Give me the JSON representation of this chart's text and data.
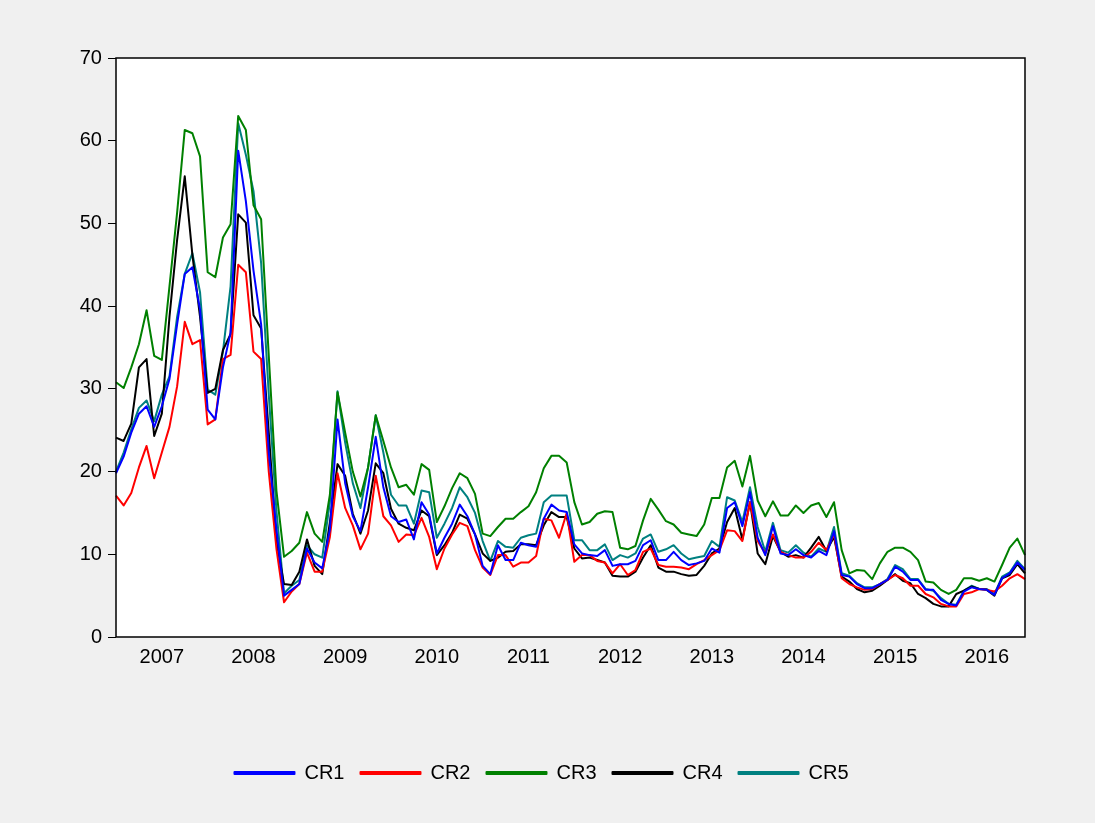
{
  "chart_data": {
    "type": "line",
    "categories": [
      null,
      null,
      null,
      null,
      null,
      null,
      "2007",
      null,
      null,
      null,
      null,
      null,
      null,
      null,
      null,
      null,
      null,
      null,
      "2008",
      null,
      null,
      null,
      null,
      null,
      null,
      null,
      null,
      null,
      null,
      null,
      "2009",
      null,
      null,
      null,
      null,
      null,
      null,
      null,
      null,
      null,
      null,
      null,
      "2010",
      null,
      null,
      null,
      null,
      null,
      null,
      null,
      null,
      null,
      null,
      null,
      "2011",
      null,
      null,
      null,
      null,
      null,
      null,
      null,
      null,
      null,
      null,
      null,
      "2012",
      null,
      null,
      null,
      null,
      null,
      null,
      null,
      null,
      null,
      null,
      null,
      "2013",
      null,
      null,
      null,
      null,
      null,
      null,
      null,
      null,
      null,
      null,
      null,
      "2014",
      null,
      null,
      null,
      null,
      null,
      null,
      null,
      null,
      null,
      null,
      null,
      "2015",
      null,
      null,
      null,
      null,
      null,
      null,
      null,
      null,
      null,
      null,
      null,
      "2016",
      null,
      null,
      null,
      null,
      null
    ],
    "series": [
      {
        "name": "CR1",
        "color": "#0000ff",
        "values": [
          19.8,
          21.8,
          24.7,
          27.0,
          27.9,
          25.4,
          27.9,
          31.2,
          37.8,
          43.9,
          44.7,
          39.6,
          27.5,
          26.3,
          32.6,
          36.8,
          58.8,
          52.7,
          44.3,
          37.8,
          22.3,
          13.0,
          5.0,
          5.7,
          6.4,
          10.7,
          9.0,
          8.3,
          13.0,
          26.3,
          18.6,
          14.6,
          12.8,
          18.1,
          24.2,
          18.1,
          14.6,
          13.9,
          14.2,
          11.8,
          16.3,
          14.8,
          10.1,
          12.0,
          13.7,
          16.0,
          14.6,
          12.4,
          8.6,
          7.6,
          11.1,
          9.3,
          9.3,
          11.4,
          11.1,
          10.9,
          14.3,
          16.0,
          15.3,
          15.1,
          11.2,
          10.1,
          9.9,
          9.8,
          10.5,
          8.6,
          8.8,
          8.8,
          9.2,
          11.1,
          11.7,
          9.3,
          9.3,
          10.3,
          9.3,
          8.7,
          8.9,
          9.2,
          10.7,
          10.2,
          15.6,
          16.3,
          13.4,
          17.5,
          12.0,
          9.9,
          13.4,
          10.1,
          9.9,
          10.6,
          9.9,
          9.6,
          10.4,
          9.9,
          12.8,
          7.5,
          7.3,
          6.4,
          5.9,
          5.9,
          6.4,
          6.9,
          8.5,
          7.9,
          6.9,
          6.9,
          5.7,
          5.7,
          4.5,
          4.0,
          3.8,
          5.5,
          6.0,
          5.8,
          5.7,
          5.1,
          7.1,
          7.7,
          9.0,
          8.1
        ]
      },
      {
        "name": "CR2",
        "color": "#ff0000",
        "values": [
          17.1,
          15.9,
          17.4,
          20.5,
          23.1,
          19.2,
          22.3,
          25.4,
          30.3,
          38.1,
          35.4,
          35.9,
          25.7,
          26.3,
          33.6,
          34.1,
          45.0,
          44.1,
          34.5,
          33.6,
          20.0,
          10.7,
          4.2,
          5.5,
          6.4,
          10.2,
          7.9,
          7.9,
          12.1,
          19.8,
          15.6,
          13.5,
          10.6,
          12.5,
          19.5,
          14.6,
          13.5,
          11.5,
          12.4,
          12.3,
          14.4,
          12.1,
          8.2,
          10.7,
          12.4,
          13.8,
          13.4,
          10.5,
          8.4,
          7.5,
          9.9,
          9.9,
          8.5,
          9.0,
          9.0,
          9.8,
          14.3,
          14.1,
          12.0,
          15.0,
          9.1,
          9.9,
          9.9,
          9.2,
          9.0,
          7.7,
          8.8,
          7.5,
          8.1,
          10.3,
          10.7,
          8.7,
          8.5,
          8.5,
          8.4,
          8.2,
          8.8,
          9.3,
          9.9,
          10.5,
          12.9,
          12.8,
          11.6,
          16.3,
          11.6,
          10.1,
          12.4,
          10.3,
          9.9,
          9.6,
          9.6,
          10.3,
          11.4,
          10.5,
          12.4,
          7.1,
          6.4,
          6.0,
          5.7,
          5.8,
          6.4,
          6.9,
          7.5,
          7.1,
          6.2,
          6.2,
          5.2,
          4.8,
          4.0,
          3.7,
          3.7,
          5.2,
          5.4,
          5.8,
          5.7,
          5.5,
          6.2,
          7.1,
          7.6,
          7.0
        ]
      },
      {
        "name": "CR3",
        "color": "#008000",
        "values": [
          30.8,
          30.1,
          32.6,
          35.4,
          39.5,
          34.0,
          33.5,
          42.4,
          51.3,
          61.3,
          60.9,
          58.1,
          44.1,
          43.5,
          48.3,
          49.9,
          63.0,
          61.3,
          52.2,
          50.5,
          34.0,
          17.7,
          9.7,
          10.4,
          11.4,
          15.1,
          12.5,
          11.5,
          17.2,
          29.6,
          24.7,
          20.0,
          17.0,
          20.5,
          26.8,
          23.7,
          20.5,
          18.1,
          18.4,
          17.2,
          20.9,
          20.2,
          13.9,
          15.8,
          18.0,
          19.8,
          19.2,
          17.3,
          12.5,
          12.2,
          13.3,
          14.3,
          14.3,
          15.1,
          15.8,
          17.5,
          20.4,
          21.9,
          21.9,
          21.1,
          16.3,
          13.6,
          13.9,
          14.9,
          15.2,
          15.1,
          10.8,
          10.6,
          11.0,
          14.1,
          16.7,
          15.4,
          14.0,
          13.6,
          12.6,
          12.4,
          12.2,
          13.6,
          16.8,
          16.8,
          20.5,
          21.3,
          18.2,
          21.9,
          16.5,
          14.6,
          16.4,
          14.7,
          14.7,
          15.9,
          15.0,
          15.9,
          16.2,
          14.5,
          16.3,
          10.5,
          7.7,
          8.1,
          8.0,
          7.0,
          8.9,
          10.3,
          10.8,
          10.8,
          10.3,
          9.3,
          6.7,
          6.6,
          5.7,
          5.2,
          5.7,
          7.1,
          7.1,
          6.8,
          7.1,
          6.7,
          8.7,
          10.8,
          11.9,
          9.9
        ]
      },
      {
        "name": "CR4",
        "color": "#000000",
        "values": [
          24.1,
          23.7,
          25.8,
          32.6,
          33.6,
          24.3,
          27.0,
          38.7,
          48.0,
          55.7,
          46.2,
          38.7,
          29.5,
          30.0,
          34.7,
          36.6,
          51.1,
          50.1,
          38.9,
          37.3,
          24.7,
          11.6,
          6.4,
          6.3,
          7.9,
          11.8,
          8.6,
          7.6,
          13.9,
          20.9,
          19.5,
          14.9,
          12.5,
          15.3,
          21.0,
          19.8,
          15.5,
          13.7,
          13.2,
          12.9,
          15.3,
          14.6,
          9.9,
          11.1,
          12.6,
          14.8,
          14.3,
          12.4,
          10.1,
          9.2,
          9.6,
          10.3,
          10.4,
          11.2,
          11.2,
          11.1,
          13.5,
          15.1,
          14.5,
          14.5,
          10.7,
          9.5,
          9.6,
          9.3,
          9.0,
          7.4,
          7.3,
          7.3,
          7.9,
          9.6,
          11.1,
          8.4,
          7.9,
          7.9,
          7.6,
          7.4,
          7.5,
          8.6,
          10.1,
          10.7,
          13.9,
          15.6,
          11.8,
          16.3,
          10.1,
          8.8,
          12.2,
          10.3,
          9.7,
          9.9,
          9.6,
          10.8,
          12.1,
          10.4,
          12.1,
          7.3,
          6.7,
          5.8,
          5.4,
          5.6,
          6.2,
          6.9,
          7.6,
          6.8,
          6.5,
          5.2,
          4.7,
          4.0,
          3.7,
          3.7,
          5.2,
          5.6,
          6.1,
          5.8,
          5.7,
          5.0,
          7.1,
          7.5,
          8.8,
          7.7
        ]
      },
      {
        "name": "CR5",
        "color": "#008080",
        "values": [
          20.0,
          22.3,
          25.1,
          27.7,
          28.6,
          26.1,
          29.3,
          31.5,
          38.7,
          43.9,
          46.4,
          41.7,
          29.9,
          29.3,
          34.5,
          42.4,
          62.1,
          58.3,
          53.9,
          45.2,
          29.3,
          15.3,
          5.3,
          6.2,
          6.9,
          11.1,
          10.0,
          9.6,
          16.3,
          29.7,
          23.5,
          18.6,
          15.6,
          20.5,
          26.8,
          22.3,
          17.2,
          15.9,
          15.9,
          13.7,
          17.7,
          17.5,
          12.0,
          13.7,
          15.6,
          18.1,
          16.9,
          15.0,
          11.6,
          9.2,
          11.6,
          10.9,
          10.8,
          12.0,
          12.3,
          12.5,
          16.3,
          17.1,
          17.1,
          17.1,
          11.7,
          11.7,
          10.5,
          10.5,
          11.2,
          9.3,
          9.9,
          9.6,
          10.1,
          11.9,
          12.4,
          10.3,
          10.6,
          11.1,
          10.1,
          9.4,
          9.6,
          9.8,
          11.6,
          10.9,
          16.9,
          16.5,
          13.9,
          18.1,
          13.3,
          10.3,
          13.8,
          10.5,
          10.2,
          11.1,
          10.2,
          9.7,
          10.7,
          10.3,
          13.3,
          7.7,
          7.4,
          6.5,
          6.0,
          6.0,
          6.4,
          7.0,
          8.7,
          8.2,
          7.0,
          7.0,
          5.8,
          5.6,
          4.7,
          4.0,
          3.9,
          5.6,
          6.2,
          5.8,
          5.8,
          5.2,
          7.3,
          7.8,
          9.2,
          8.2
        ]
      }
    ],
    "ylim": [
      0,
      70
    ],
    "yticks": [
      0,
      10,
      20,
      30,
      40,
      50,
      60,
      70
    ],
    "grid": false,
    "legend": "bottom",
    "marker": "none",
    "line_style": "solid"
  }
}
